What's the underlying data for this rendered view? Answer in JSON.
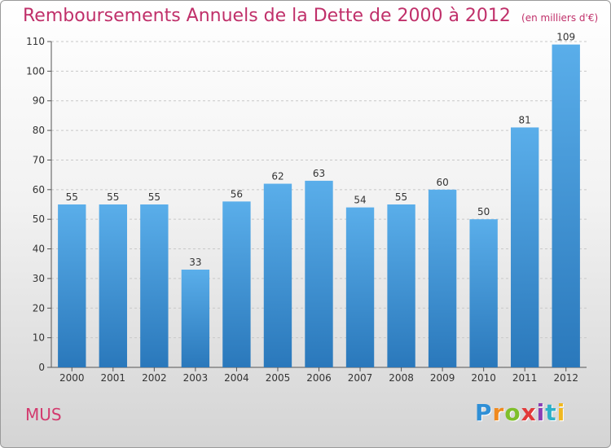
{
  "chart_data": {
    "type": "bar",
    "title": "Remboursements Annuels de la Dette de 2000 à 2012",
    "subtitle": "(en milliers d'€)",
    "categories": [
      "2000",
      "2001",
      "2002",
      "2003",
      "2004",
      "2005",
      "2006",
      "2007",
      "2008",
      "2009",
      "2010",
      "2011",
      "2012"
    ],
    "values": [
      55,
      55,
      55,
      33,
      56,
      62,
      63,
      54,
      55,
      60,
      50,
      81,
      109
    ],
    "ylim": [
      0,
      110
    ],
    "yticks": [
      "0",
      "10",
      "20",
      "30",
      "40",
      "50",
      "60",
      "70",
      "80",
      "90",
      "100",
      "110"
    ],
    "grid": true,
    "bar_color": "#3a8fd3"
  },
  "footer": {
    "place": "MUS",
    "brand_letters": [
      {
        "char": "P",
        "color": "#2f8fd6"
      },
      {
        "char": "r",
        "color": "#f08a1f"
      },
      {
        "char": "o",
        "color": "#7fbf2a"
      },
      {
        "char": "x",
        "color": "#e23a3a"
      },
      {
        "char": "i",
        "color": "#8a3fb5"
      },
      {
        "char": "t",
        "color": "#2fb0c8"
      },
      {
        "char": "i",
        "color": "#f0b81f"
      }
    ]
  }
}
